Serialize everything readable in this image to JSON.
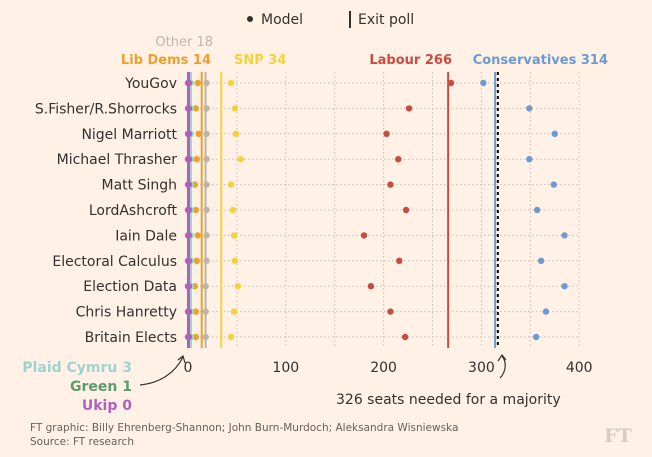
{
  "legend": {
    "model_label": "Model",
    "exit_poll_label": "Exit poll"
  },
  "chart_data": {
    "type": "dot",
    "x_axis": {
      "range": [
        0,
        400
      ],
      "ticks": [
        "0",
        "100",
        "200",
        "300",
        "400"
      ],
      "grid": "dotted"
    },
    "categories": [
      "YouGov",
      "S.Fisher/R.Shorrocks",
      "Nigel Marriott",
      "Michael Thrasher",
      "Matt Singh",
      "LordAshcroft",
      "Iain Dale",
      "Electoral Calculus",
      "Election Data",
      "Chris Hanretty",
      "Britain Elects"
    ],
    "series": [
      {
        "name": "Conservatives",
        "color": "#6b9bd1",
        "exit_poll": 314,
        "exit_poll_label": "Conservatives 314",
        "values": [
          302,
          349,
          375,
          349,
          374,
          357,
          385,
          361,
          385,
          366,
          356
        ]
      },
      {
        "name": "Labour",
        "color": "#c84c42",
        "exit_poll": 266,
        "exit_poll_label": "Labour 266",
        "values": [
          269,
          226,
          203,
          215,
          207,
          223,
          180,
          216,
          187,
          207,
          222
        ]
      },
      {
        "name": "SNP",
        "color": "#f5d23a",
        "exit_poll": 34,
        "exit_poll_label": "SNP 34",
        "values": [
          44,
          48,
          49,
          54,
          44,
          46,
          47,
          48,
          51,
          47,
          44
        ]
      },
      {
        "name": "Other",
        "color": "#bdb5ab",
        "exit_poll": 18,
        "exit_poll_label": "Other 18",
        "values": [
          19,
          19,
          19,
          19,
          19,
          19,
          19,
          19,
          18,
          18,
          18
        ]
      },
      {
        "name": "Lib Dems",
        "color": "#eba12e",
        "exit_poll": 14,
        "exit_poll_label": "Lib Dems 14",
        "values": [
          10,
          8,
          11,
          9,
          7,
          8,
          10,
          9,
          7,
          8,
          8
        ]
      },
      {
        "name": "Plaid Cymru",
        "color": "#9fd3cf",
        "exit_poll": 3,
        "exit_poll_label": "Plaid Cymru 3",
        "values": [
          3,
          3,
          3,
          3,
          3,
          3,
          3,
          3,
          3,
          3,
          3
        ]
      },
      {
        "name": "Green",
        "color": "#5b9b6e",
        "exit_poll": 1,
        "exit_poll_label": "Green 1",
        "values": [
          1,
          1,
          1,
          1,
          1,
          1,
          1,
          1,
          1,
          1,
          1
        ]
      },
      {
        "name": "Ukip",
        "color": "#b05fbf",
        "exit_poll": 0,
        "exit_poll_label": "Ukip 0",
        "values": [
          0,
          0,
          0,
          0,
          0,
          0,
          0,
          0,
          0,
          0,
          0
        ]
      }
    ],
    "majority": {
      "value": 326,
      "label": "326 seats needed for a majority"
    }
  },
  "footer": {
    "credit": "FT graphic: Billy Ehrenberg-Shannon; John Burn-Murdoch; Aleksandra Wisniewska",
    "source": "Source: FT research",
    "logo": "FT"
  }
}
